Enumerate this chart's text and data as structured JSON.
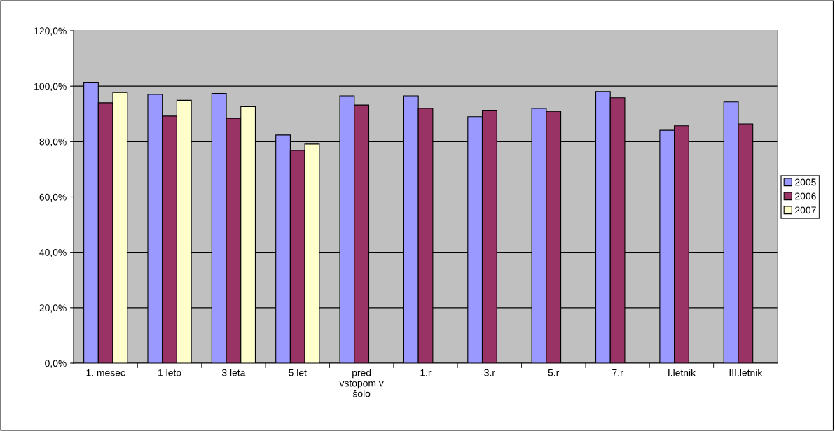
{
  "chart_data": {
    "type": "bar",
    "categories": [
      "1. mesec",
      "1 leto",
      "3 leta",
      "5 let",
      "pred\nvstopom v\nšolo",
      "1.r",
      "3.r",
      "5.r",
      "7.r",
      "I.letnik",
      "III.letnik"
    ],
    "series": [
      {
        "name": "2005",
        "color": "#9999ff",
        "values": [
          101.4,
          97.0,
          97.4,
          82.4,
          96.5,
          96.5,
          89.0,
          92.0,
          98.1,
          84.1,
          94.3
        ]
      },
      {
        "name": "2006",
        "color": "#993366",
        "values": [
          94.0,
          89.2,
          88.4,
          76.8,
          93.2,
          92.0,
          91.3,
          90.9,
          95.8,
          85.7,
          86.4
        ]
      },
      {
        "name": "2007",
        "color": "#ffffcc",
        "values": [
          97.7,
          94.9,
          92.6,
          79.1,
          null,
          null,
          null,
          null,
          null,
          null,
          null
        ]
      }
    ],
    "ylim": [
      0,
      120
    ],
    "yticks": [
      {
        "value": 0,
        "label": "0,0%"
      },
      {
        "value": 20,
        "label": "20,0%"
      },
      {
        "value": 40,
        "label": "40,0%"
      },
      {
        "value": 60,
        "label": "60,0%"
      },
      {
        "value": 80,
        "label": "80,0%"
      },
      {
        "value": 100,
        "label": "100,0%"
      },
      {
        "value": 120,
        "label": "120,0%"
      }
    ],
    "grid": "y",
    "legend": "right"
  }
}
